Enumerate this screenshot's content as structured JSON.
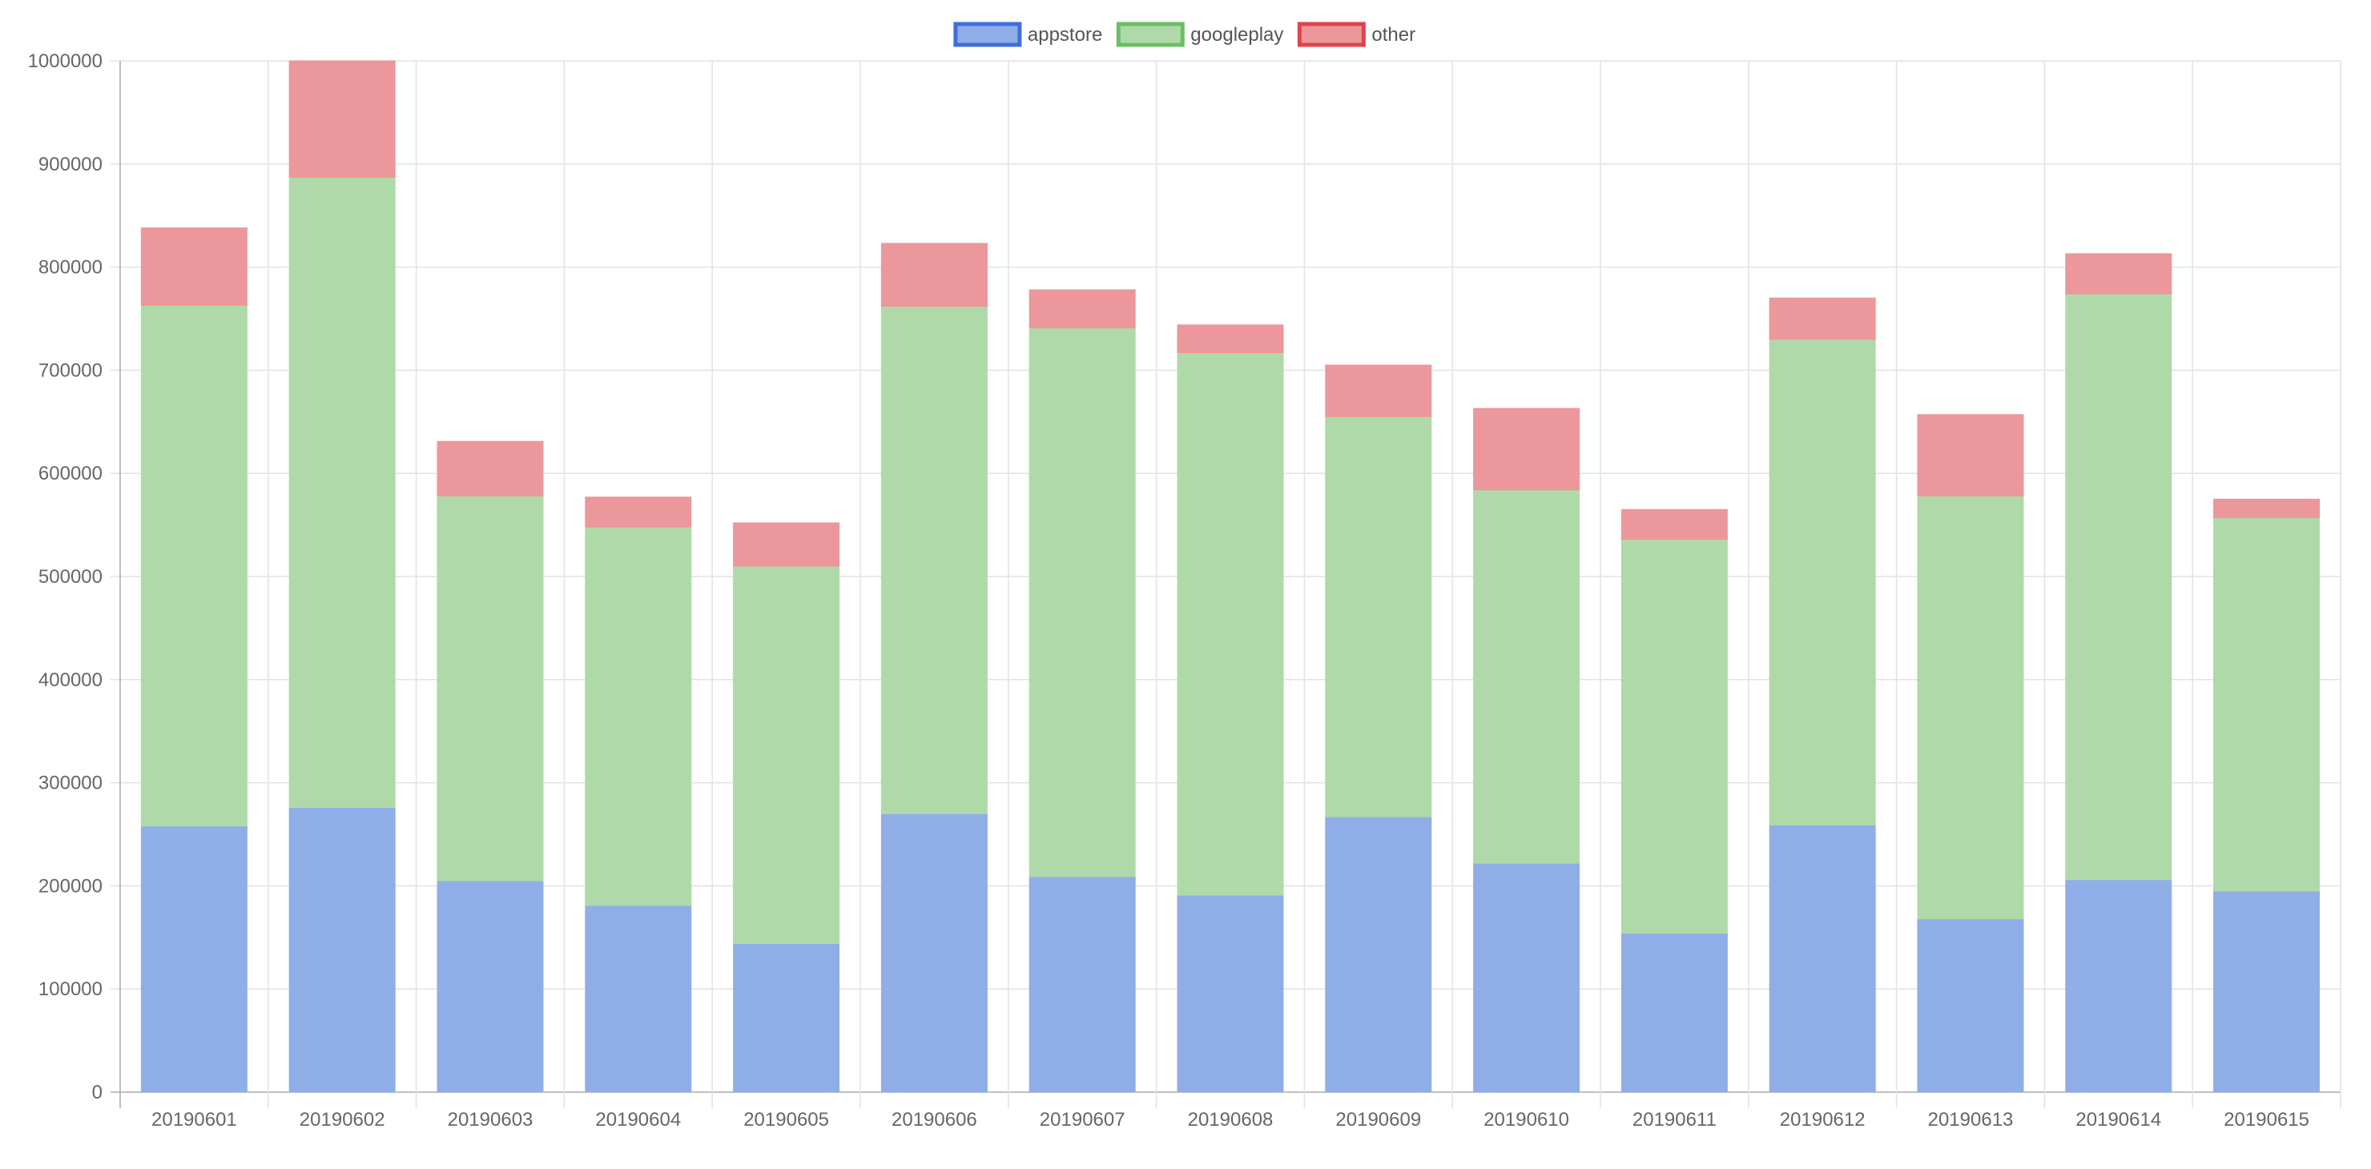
{
  "chart_data": {
    "type": "bar",
    "stacked": true,
    "categories": [
      "20190601",
      "20190602",
      "20190603",
      "20190604",
      "20190605",
      "20190606",
      "20190607",
      "20190608",
      "20190609",
      "20190610",
      "20190611",
      "20190612",
      "20190613",
      "20190614",
      "20190615"
    ],
    "series": [
      {
        "name": "appstore",
        "color": "#8faee8",
        "border_color": "#3f6fd8",
        "values": [
          258000,
          276000,
          205000,
          181000,
          144000,
          270000,
          209000,
          191000,
          267000,
          222000,
          154000,
          259000,
          168000,
          206000,
          195000
        ]
      },
      {
        "name": "googleplay",
        "color": "#b0d9a9",
        "border_color": "#6bbf63",
        "values": [
          505000,
          611000,
          373000,
          367000,
          366000,
          492000,
          532000,
          526000,
          388000,
          362000,
          382000,
          471000,
          410000,
          568000,
          362000
        ]
      },
      {
        "name": "other",
        "color": "#eb979b",
        "border_color": "#e0434d",
        "values": [
          75000,
          113000,
          53000,
          29000,
          42000,
          61000,
          37000,
          27000,
          50000,
          79000,
          29000,
          40000,
          79000,
          39000,
          18000
        ]
      }
    ],
    "ylim": [
      0,
      1000000
    ],
    "yticks": [
      "0",
      "100000",
      "200000",
      "300000",
      "400000",
      "500000",
      "600000",
      "700000",
      "800000",
      "900000",
      "1000000"
    ],
    "grid": true,
    "legend_position": "top-center",
    "title": "",
    "xlabel": "",
    "ylabel": ""
  }
}
